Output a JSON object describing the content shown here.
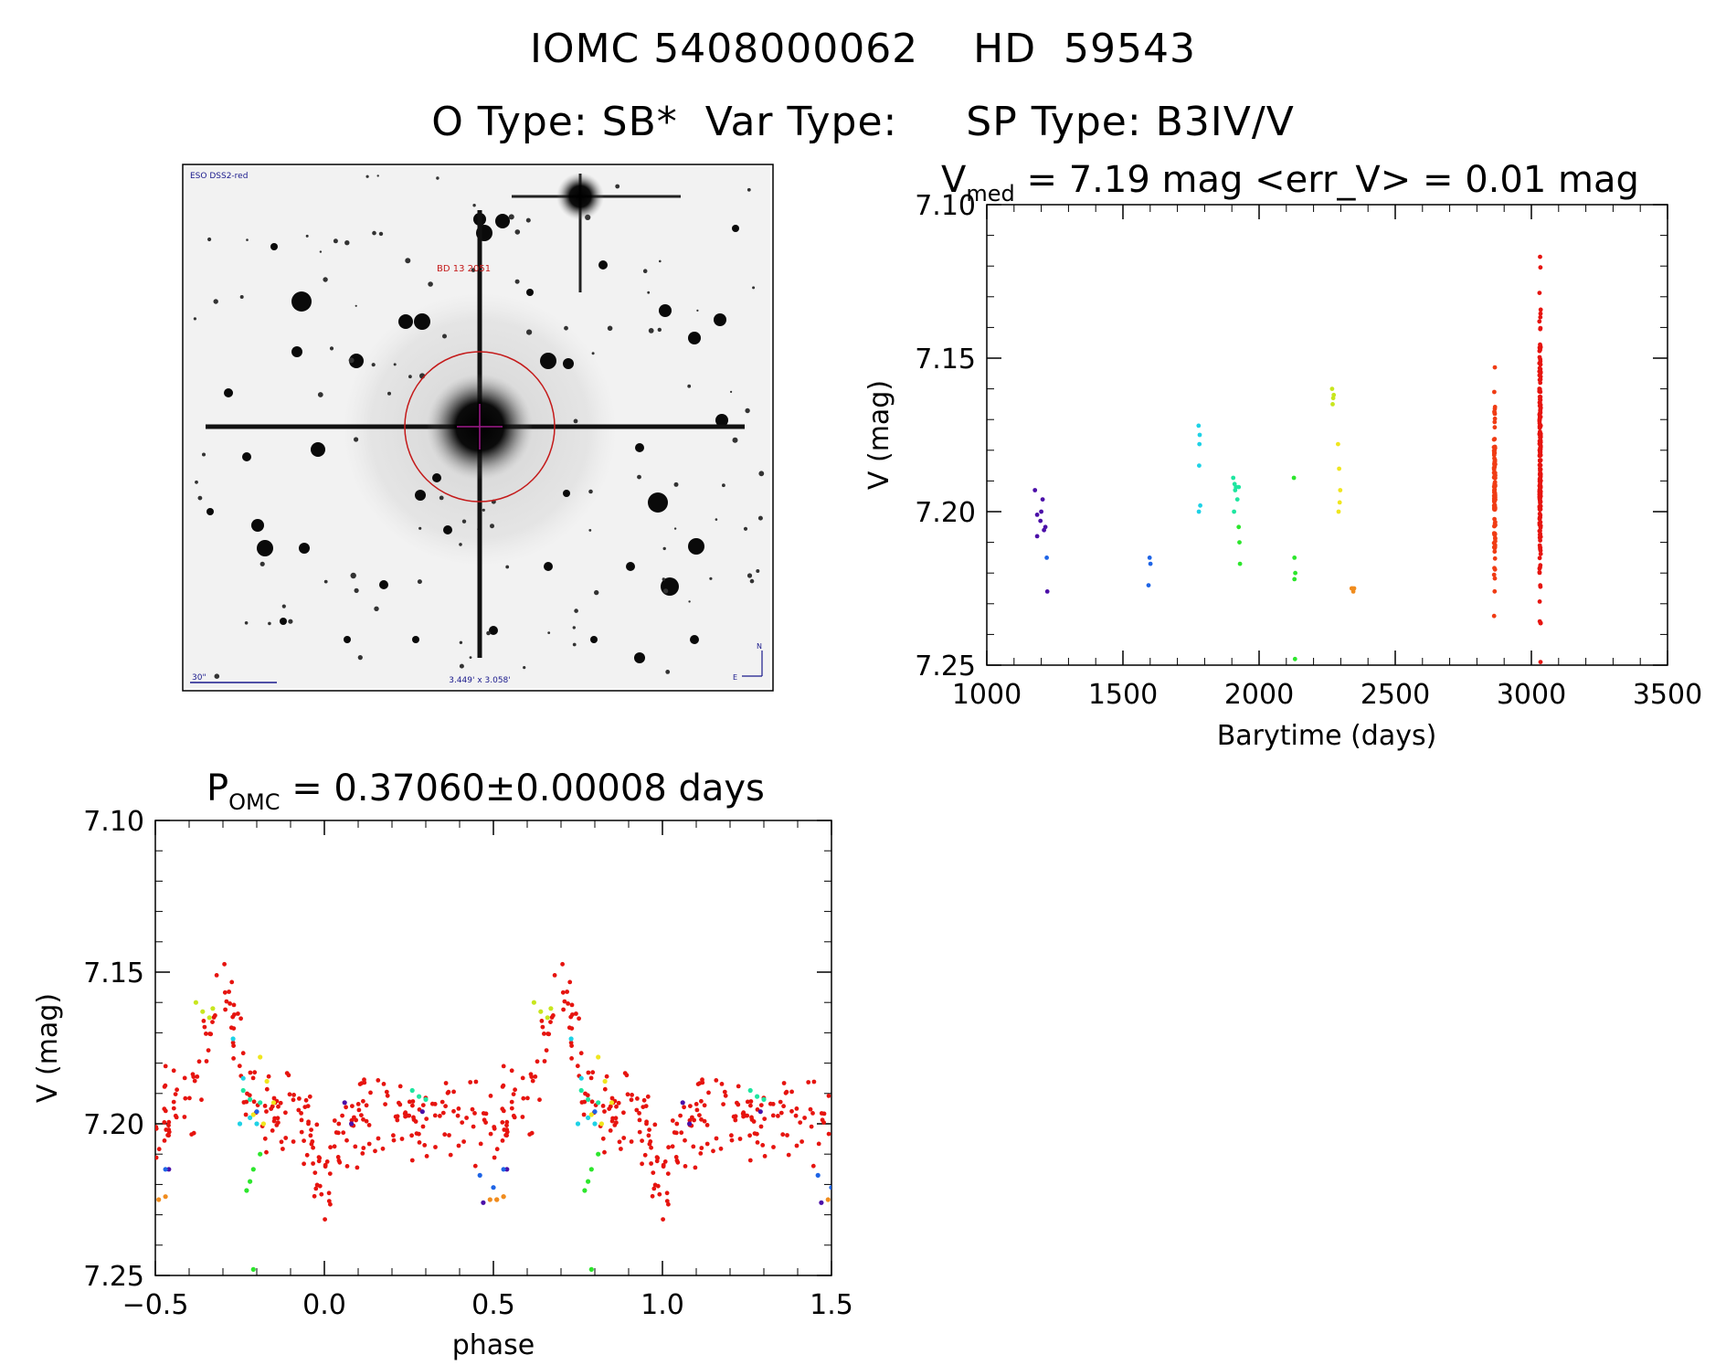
{
  "header": {
    "line1": "IOMC 5408000062    HD  59543",
    "line2": "O Type: SB*  Var Type:     SP Type: B3IV/V"
  },
  "finder": {
    "survey_label": "ESO DSS2-red",
    "star_label": "BD 13 2051",
    "scale_label": "30\"",
    "fov_label": "3.449' x 3.058'",
    "north_label": "N",
    "east_label": "E"
  },
  "colors": {
    "finder_text": "#1a1a8c",
    "star_label": "#c41a1a",
    "circle": "#c41a1a",
    "crosshair": "#a01a8c"
  },
  "chart_data": [
    {
      "id": "lightcurve",
      "type": "scatter",
      "title_prefix": "V",
      "title_sub": "med",
      "title_rest": " = 7.19 mag <err_V> = 0.01 mag",
      "xlabel": "Barytime (days)",
      "ylabel": "V (mag)",
      "xlim": [
        1000,
        3500
      ],
      "ylim": [
        7.25,
        7.1
      ],
      "xticks": [
        "1000",
        "1500",
        "2000",
        "2500",
        "3000",
        "3500"
      ],
      "yticks": [
        "7.10",
        "7.15",
        "7.20",
        "7.25"
      ],
      "series": [
        {
          "name": "t1",
          "color": "#4b0fa8",
          "x": [
            1177,
            1185,
            1197,
            1205,
            1210,
            1215,
            1185,
            1200,
            1222
          ],
          "y": [
            7.193,
            7.201,
            7.203,
            7.196,
            7.206,
            7.205,
            7.208,
            7.2,
            7.226
          ]
        },
        {
          "name": "t2",
          "color": "#1e64e6",
          "x": [
            1220,
            1598,
            1601,
            1594
          ],
          "y": [
            7.215,
            7.215,
            7.217,
            7.224
          ]
        },
        {
          "name": "t3",
          "color": "#1ed2e6",
          "x": [
            1778,
            1782,
            1780,
            1784,
            1779,
            1781
          ],
          "y": [
            7.172,
            7.175,
            7.185,
            7.198,
            7.2,
            7.178
          ]
        },
        {
          "name": "t4",
          "color": "#1ee6a0",
          "x": [
            1905,
            1910,
            1915,
            1920,
            1908,
            1925,
            1912
          ],
          "y": [
            7.189,
            7.191,
            7.192,
            7.196,
            7.2,
            7.192,
            7.193
          ]
        },
        {
          "name": "t5",
          "color": "#2ce62c",
          "x": [
            1925,
            1928,
            1930,
            2128,
            2130,
            2133,
            2130,
            2132
          ],
          "y": [
            7.205,
            7.21,
            7.217,
            7.189,
            7.215,
            7.22,
            7.222,
            7.248
          ]
        },
        {
          "name": "t6",
          "color": "#c8e61e",
          "x": [
            2268,
            2272,
            2270,
            2274
          ],
          "y": [
            7.16,
            7.163,
            7.165,
            7.162
          ]
        },
        {
          "name": "t7",
          "color": "#f0e61e",
          "x": [
            2290,
            2294,
            2298,
            2296,
            2292
          ],
          "y": [
            7.178,
            7.186,
            7.193,
            7.197,
            7.2
          ]
        },
        {
          "name": "t8",
          "color": "#f08c1e",
          "x": [
            2340,
            2343,
            2346,
            2349
          ],
          "y": [
            7.225,
            7.225,
            7.226,
            7.225
          ]
        },
        {
          "name": "t9",
          "color": "#f03c14",
          "spread": true,
          "x_center": 2865,
          "x_jitter": 12,
          "count": 110,
          "y_min": 7.153,
          "y_max": 7.234
        },
        {
          "name": "t10",
          "color": "#e6140f",
          "spread": true,
          "x_center": 3032,
          "x_jitter": 12,
          "count": 210,
          "y_min": 7.117,
          "y_max": 7.249
        }
      ]
    },
    {
      "id": "phased",
      "type": "scatter",
      "title_prefix": "P",
      "title_sub": "OMC",
      "title_rest": " = 0.37060±0.00008 days",
      "xlabel": "phase",
      "ylabel": "V (mag)",
      "xlim": [
        -0.5,
        1.5
      ],
      "ylim": [
        7.25,
        7.1
      ],
      "xticks": [
        "−0.5",
        "0.0",
        "0.5",
        "1.0",
        "1.5"
      ],
      "yticks": [
        "7.10",
        "7.15",
        "7.20",
        "7.25"
      ],
      "period_days": 0.3706,
      "description_note": "phased light curve of the same data, repeated over two cycles",
      "series": [
        {
          "name": "p-green",
          "color": "#2ce62c",
          "phase": [
            -0.23,
            -0.22,
            -0.21,
            -0.19,
            -0.21
          ],
          "y": [
            7.222,
            7.219,
            7.215,
            7.21,
            7.248
          ]
        },
        {
          "name": "p-cyan",
          "color": "#1ed2e6",
          "phase": [
            -0.27,
            -0.24,
            -0.22,
            -0.2,
            -0.25
          ],
          "y": [
            7.172,
            7.185,
            7.198,
            7.2,
            7.2
          ]
        },
        {
          "name": "p-teal",
          "color": "#1ee6a0",
          "phase": [
            -0.24,
            -0.22,
            -0.19,
            0.26,
            0.28,
            0.3
          ],
          "y": [
            7.189,
            7.192,
            7.193,
            7.189,
            7.191,
            7.192
          ]
        },
        {
          "name": "p-lime",
          "color": "#c8e61e",
          "phase": [
            -0.38,
            -0.36,
            -0.34,
            -0.33
          ],
          "y": [
            7.16,
            7.163,
            7.165,
            7.162
          ]
        },
        {
          "name": "p-yellow",
          "color": "#f0e61e",
          "phase": [
            -0.19,
            -0.17,
            -0.15,
            -0.21,
            -0.18
          ],
          "y": [
            7.178,
            7.186,
            7.193,
            7.197,
            7.2
          ]
        },
        {
          "name": "p-orange",
          "color": "#f08c1e",
          "phase": [
            -0.49,
            -0.47,
            0.49,
            0.51,
            0.53
          ],
          "y": [
            7.225,
            7.224,
            7.225,
            7.225,
            7.224
          ]
        },
        {
          "name": "p-purple",
          "color": "#4b0fa8",
          "phase": [
            -0.46,
            0.06,
            0.08,
            0.29,
            0.47
          ],
          "y": [
            7.215,
            7.193,
            7.2,
            7.196,
            7.226
          ]
        },
        {
          "name": "p-blue",
          "color": "#1e64e6",
          "phase": [
            -0.47,
            -0.2,
            0.46,
            0.5
          ],
          "y": [
            7.215,
            7.196,
            7.217,
            7.221
          ]
        }
      ],
      "red_cloud": {
        "color": "#e6140f",
        "count": 260
      }
    }
  ]
}
